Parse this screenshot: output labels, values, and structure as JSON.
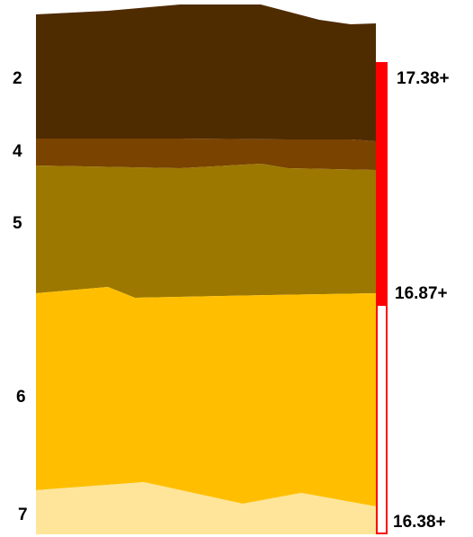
{
  "layers": [
    {
      "label": "2",
      "color": "#4f2b00"
    },
    {
      "label": "4",
      "color": "#7a4300"
    },
    {
      "label": "5",
      "color": "#9c7800"
    },
    {
      "label": "6",
      "color": "#ffbf00"
    },
    {
      "label": "7",
      "color": "#ffe599"
    }
  ],
  "scale": {
    "labels": [
      "17.38+",
      "16.87+",
      "16.38+"
    ],
    "filled_color": "#ff0000",
    "empty_color": "#ffffff",
    "border_color": "#ff0000"
  }
}
